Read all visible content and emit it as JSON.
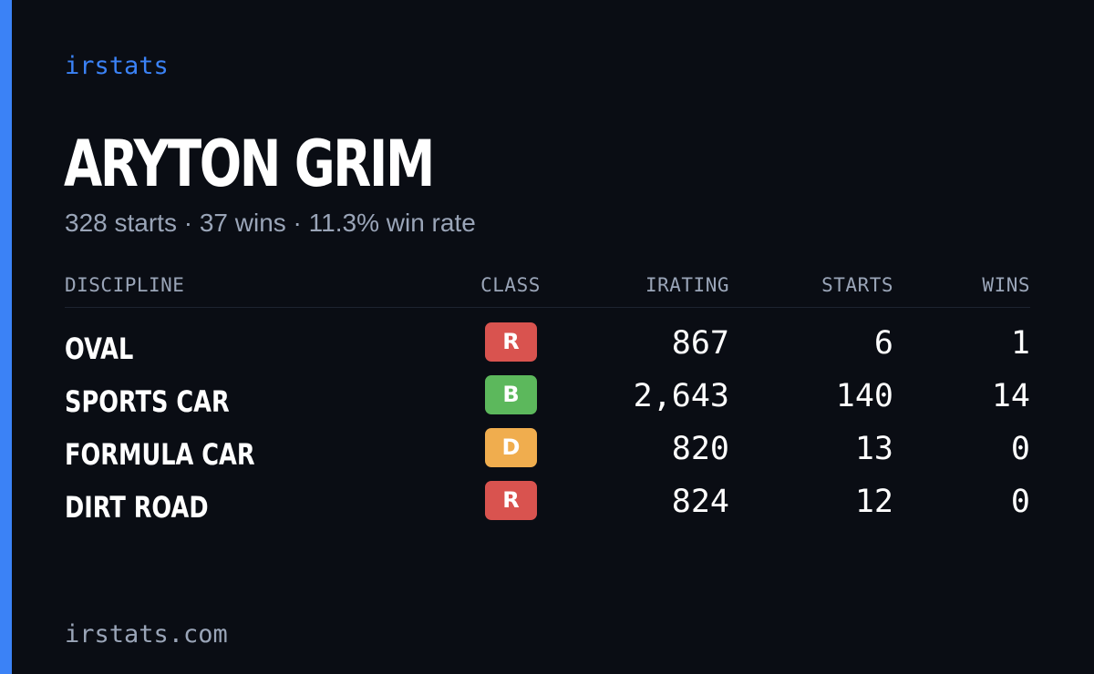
{
  "brand": "irstats",
  "player": {
    "name": "ARYTON GRIM",
    "summary": "328 starts · 37 wins · 11.3% win rate"
  },
  "table": {
    "headers": {
      "discipline": "DISCIPLINE",
      "class": "CLASS",
      "irating": "IRATING",
      "starts": "STARTS",
      "wins": "WINS"
    },
    "rows": [
      {
        "discipline": "OVAL",
        "class": "R",
        "class_color": "#d9534f",
        "irating": "867",
        "starts": "6",
        "wins": "1"
      },
      {
        "discipline": "SPORTS CAR",
        "class": "B",
        "class_color": "#5cb85c",
        "irating": "2,643",
        "starts": "140",
        "wins": "14"
      },
      {
        "discipline": "FORMULA CAR",
        "class": "D",
        "class_color": "#f0ad4e",
        "irating": "820",
        "starts": "13",
        "wins": "0"
      },
      {
        "discipline": "DIRT ROAD",
        "class": "R",
        "class_color": "#d9534f",
        "irating": "824",
        "starts": "12",
        "wins": "0"
      }
    ]
  },
  "footer": {
    "url": "irstats.com"
  },
  "colors": {
    "background": "#0a0d14",
    "accent": "#3b82f6",
    "muted_text": "#9aa5b8"
  }
}
